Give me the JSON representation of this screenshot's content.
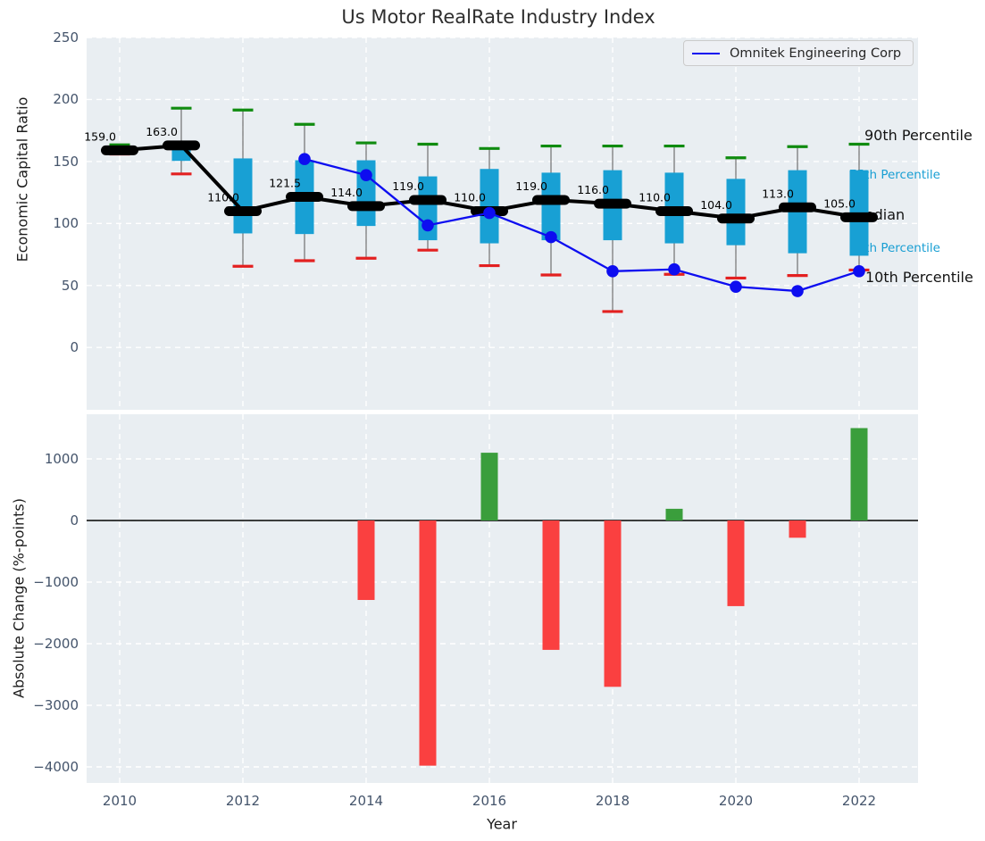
{
  "chart_data": [
    {
      "type": "box",
      "panel": "top",
      "title": "Us Motor RealRate Industry Index",
      "ylabel": "Economic Capital Ratio",
      "ylim": [
        -50,
        250
      ],
      "yticks": [
        250,
        200,
        150,
        100,
        50,
        0
      ],
      "xticks": [
        2010,
        2012,
        2014,
        2016,
        2018,
        2020,
        2022
      ],
      "grid": "white-dashed",
      "years": [
        2010,
        2011,
        2012,
        2013,
        2014,
        2015,
        2016,
        2017,
        2018,
        2019,
        2020,
        2021,
        2022
      ],
      "p10": [
        156,
        140,
        65.5,
        70,
        72,
        78.5,
        66,
        58.5,
        29,
        59,
        56,
        58,
        62.5
      ],
      "p25": [
        157.5,
        150.5,
        92,
        91.5,
        98,
        86.5,
        84,
        86.5,
        86.5,
        84,
        82.5,
        76,
        74
      ],
      "median": [
        159,
        163,
        110,
        121.5,
        114,
        119,
        110,
        119,
        116,
        110,
        104,
        113,
        105
      ],
      "p75": [
        161,
        162.5,
        152.5,
        151,
        151,
        138,
        144,
        141,
        143,
        141,
        136,
        143,
        143
      ],
      "p90": [
        163.5,
        193,
        191.5,
        180,
        165,
        164,
        160.5,
        162.5,
        162.5,
        162.5,
        153,
        162,
        164
      ],
      "median_labels": [
        "159.0",
        "163.0",
        "110.0",
        "121.5",
        "114.0",
        "119.0",
        "110.0",
        "119.0",
        "116.0",
        "110.0",
        "104.0",
        "113.0",
        "105.0"
      ],
      "labels_right": {
        "p90": "90th Percentile",
        "p75": "75th Percentile",
        "median": "Median",
        "p25": "25th Percentile",
        "p10": "10th Percentile"
      },
      "legend_position": "upper right",
      "series": [
        {
          "name": "Omnitek Engineering Corp",
          "x": [
            2013,
            2014,
            2015,
            2016,
            2017,
            2018,
            2019,
            2020,
            2021,
            2022
          ],
          "values": [
            152,
            139,
            98.5,
            108.5,
            89,
            61.5,
            63,
            49,
            45.5,
            61.5
          ]
        }
      ]
    },
    {
      "type": "bar",
      "panel": "bottom",
      "ylabel": "Absolute Change (%-points)",
      "xlabel": "Year",
      "ylim": [
        -4260,
        1720
      ],
      "yticks": [
        1000,
        0,
        -1000,
        -2000,
        -3000,
        -4000
      ],
      "xticks": [
        2010,
        2012,
        2014,
        2016,
        2018,
        2020,
        2022
      ],
      "grid": "white-dashed",
      "zero_line": 0,
      "years": [
        2010,
        2011,
        2012,
        2013,
        2014,
        2015,
        2016,
        2017,
        2018,
        2019,
        2020,
        2021,
        2022
      ],
      "values": [
        null,
        null,
        null,
        null,
        -1290,
        -3980,
        1100,
        -2100,
        -2700,
        190,
        -1390,
        -280,
        1500
      ]
    }
  ],
  "colors": {
    "panel_background": "#e9eef2",
    "box_fill": "#18a0d4",
    "p90_cap": "#0f8b0f",
    "p10_cap": "#e32020",
    "median_marker": "#000000",
    "company_line": "#0d0df0",
    "bar_positive": "#3a9e3c",
    "bar_negative": "#fa4040",
    "grid": "#ffffff",
    "tick_text": "#44546b",
    "cyan_label_text": "#189ed3",
    "whisker": "#7a7a7a"
  }
}
